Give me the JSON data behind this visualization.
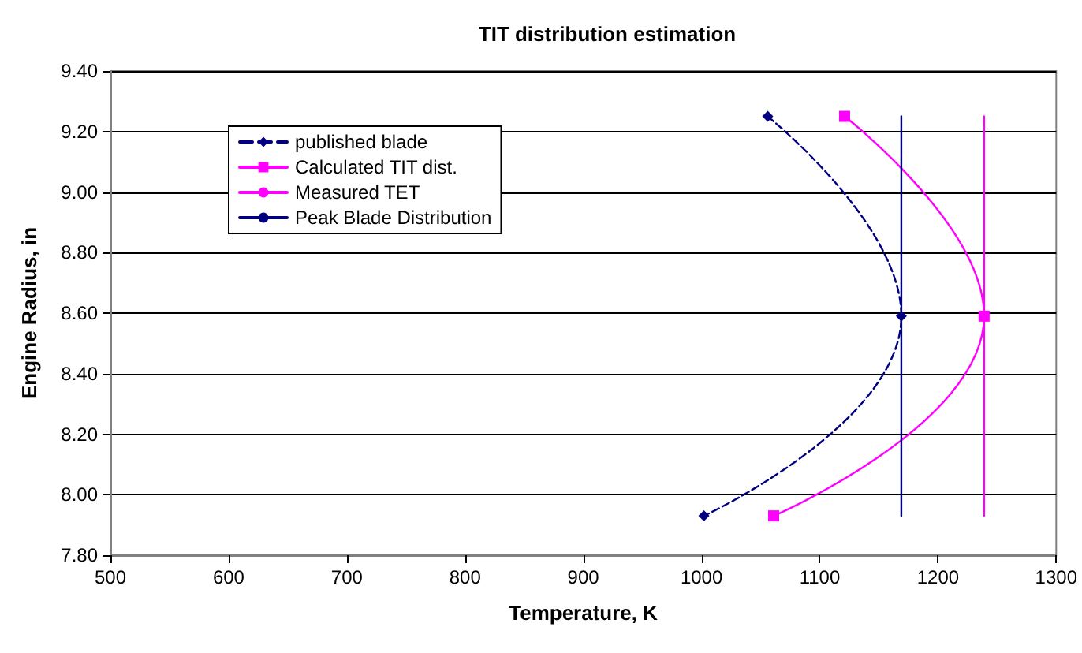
{
  "chart_data": {
    "type": "line",
    "title": "TIT distribution estimation",
    "xlabel": "Temperature, K",
    "ylabel": "Engine Radius, in",
    "xlim": [
      500,
      1300
    ],
    "xticks": [
      500,
      600,
      700,
      800,
      900,
      1000,
      1100,
      1200,
      1300
    ],
    "ylim": [
      7.8,
      9.4
    ],
    "yticks": [
      {
        "value": 7.8,
        "label": "7.80"
      },
      {
        "value": 8.0,
        "label": "8.00"
      },
      {
        "value": 8.2,
        "label": "8.20"
      },
      {
        "value": 8.4,
        "label": "8.40"
      },
      {
        "value": 8.6,
        "label": "8.60"
      },
      {
        "value": 8.8,
        "label": "8.80"
      },
      {
        "value": 9.0,
        "label": "9.00"
      },
      {
        "value": 9.2,
        "label": "9.20"
      },
      {
        "value": 9.4,
        "label": "9.40"
      }
    ],
    "grid": "y",
    "legend": "top left",
    "series": [
      {
        "name": "published blade",
        "color": "#000080",
        "marker": "diamond",
        "line_style": "dashed",
        "x": [
          1056,
          1169,
          1002
        ],
        "values": [
          9.25,
          8.59,
          7.93
        ]
      },
      {
        "name": "Calculated TIT dist.",
        "color": "#ff00ff",
        "marker": "square",
        "line_style": "solid",
        "x": [
          1121,
          1239,
          1061
        ],
        "values": [
          9.25,
          8.59,
          7.93
        ]
      },
      {
        "name": "Measured TET",
        "color": "#ff00ff",
        "marker": "none",
        "line_style": "solid",
        "x": [
          1239,
          1239
        ],
        "values": [
          9.25,
          7.93
        ]
      },
      {
        "name": "Peak Blade Distribution",
        "color": "#000080",
        "marker": "none",
        "line_style": "solid",
        "x": [
          1169,
          1169
        ],
        "values": [
          9.25,
          7.93
        ]
      }
    ]
  }
}
